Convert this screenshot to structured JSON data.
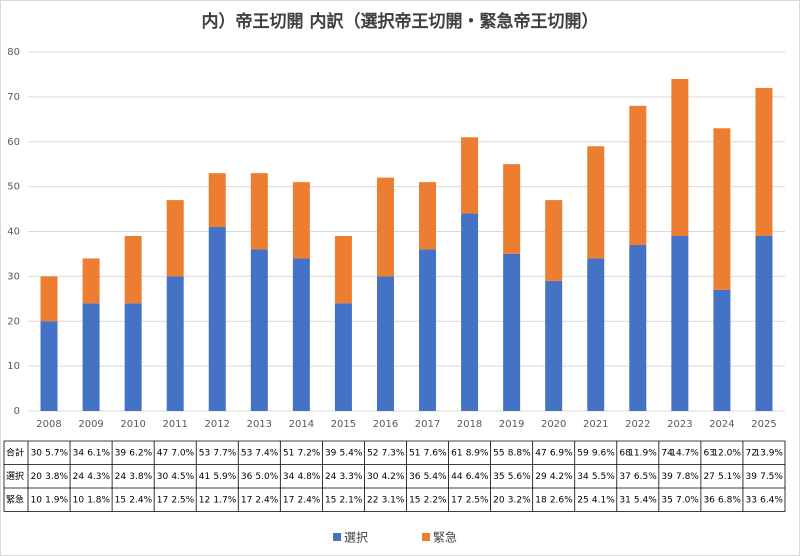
{
  "chart_data": {
    "type": "stacked_bar",
    "title": "内）帝王切開 内訳（選択帝王切開・緊急帝王切開）",
    "categories": [
      "2008",
      "2009",
      "2010",
      "2011",
      "2012",
      "2013",
      "2014",
      "2015",
      "2016",
      "2017",
      "2018",
      "2019",
      "2020",
      "2021",
      "2022",
      "2023",
      "2024",
      "2025"
    ],
    "series": [
      {
        "name": "選択",
        "color": "#4472c4",
        "values": [
          20,
          24,
          24,
          30,
          41,
          36,
          34,
          24,
          30,
          36,
          44,
          35,
          29,
          34,
          37,
          39,
          27,
          39
        ],
        "percent_labels": [
          "3.8%",
          "4.3%",
          "3.8%",
          "4.5%",
          "5.9%",
          "5.0%",
          "4.8%",
          "3.3%",
          "4.2%",
          "5.4%",
          "6.4%",
          "5.6%",
          "4.2%",
          "5.5%",
          "6.5%",
          "7.8%",
          "5.1%",
          "7.5%"
        ]
      },
      {
        "name": "緊急",
        "color": "#ed7d31",
        "values": [
          10,
          10,
          15,
          17,
          12,
          17,
          17,
          15,
          22,
          15,
          17,
          20,
          18,
          25,
          31,
          35,
          36,
          33
        ],
        "percent_labels": [
          "1.9%",
          "1.8%",
          "2.4%",
          "2.5%",
          "1.7%",
          "2.4%",
          "2.4%",
          "2.1%",
          "3.1%",
          "2.2%",
          "2.5%",
          "3.2%",
          "2.6%",
          "4.1%",
          "5.4%",
          "7.0%",
          "6.8%",
          "6.4%"
        ]
      }
    ],
    "total": {
      "label": "合計",
      "values": [
        30,
        34,
        39,
        47,
        53,
        53,
        51,
        39,
        52,
        51,
        61,
        55,
        47,
        59,
        68,
        74,
        63,
        72
      ],
      "percent_labels": [
        "5.7%",
        "6.1%",
        "6.2%",
        "7.0%",
        "7.7%",
        "7.4%",
        "7.2%",
        "5.4%",
        "7.3%",
        "7.6%",
        "8.9%",
        "8.8%",
        "6.9%",
        "9.6%",
        "11.9%",
        "14.7%",
        "12.0%",
        "13.9%"
      ]
    },
    "ylim": [
      0,
      80
    ],
    "yticks": [
      0,
      10,
      20,
      30,
      40,
      50,
      60,
      70,
      80
    ],
    "grid": true
  }
}
